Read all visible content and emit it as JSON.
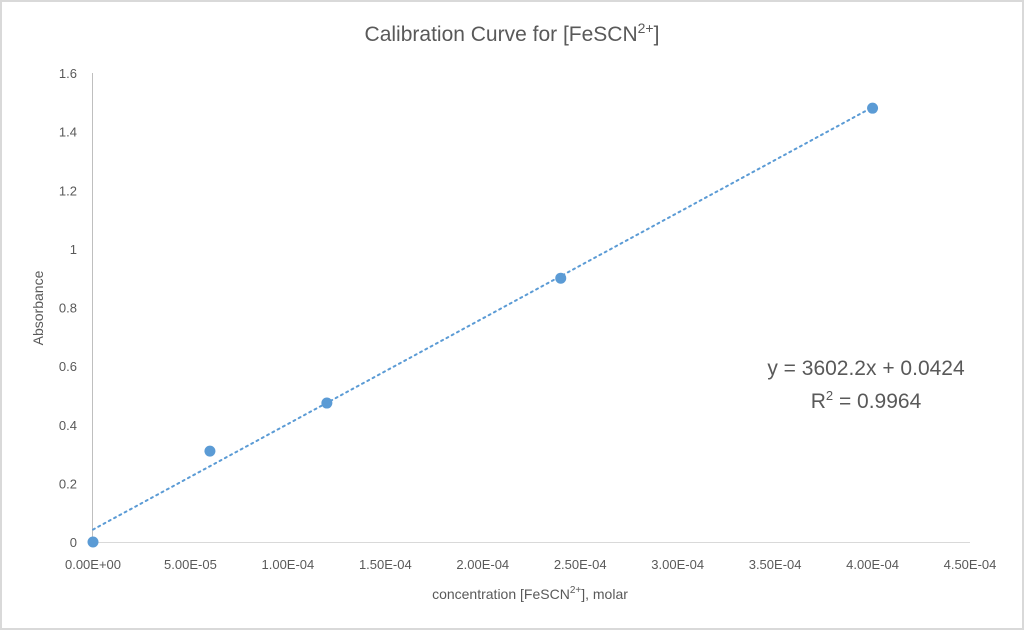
{
  "chart_data": {
    "type": "scatter",
    "title": "Calibration Curve for [FeSCN2+]",
    "title_parts": {
      "main": "Calibration Curve for [FeSCN",
      "sup": "2+",
      "end": "]"
    },
    "xlabel": "concentration [FeSCN2+], molar",
    "xlabel_parts": {
      "main": "concentration [FeSCN",
      "sup": "2+",
      "end": "], molar"
    },
    "ylabel": "Absorbance",
    "xlim": [
      0,
      0.00045
    ],
    "ylim": [
      0,
      1.6
    ],
    "x_ticks": [
      "0.00E+00",
      "5.00E-05",
      "1.00E-04",
      "1.50E-04",
      "2.00E-04",
      "2.50E-04",
      "3.00E-04",
      "3.50E-04",
      "4.00E-04",
      "4.50E-04"
    ],
    "y_ticks": [
      "0",
      "0.2",
      "0.4",
      "0.6",
      "0.8",
      "1",
      "1.2",
      "1.4",
      "1.6"
    ],
    "grid": false,
    "legend": null,
    "series": [
      {
        "name": "Absorbance",
        "color": "#5b9bd5",
        "x": [
          0,
          6e-05,
          0.00012,
          0.00024,
          0.0004
        ],
        "y": [
          0,
          0.31,
          0.474,
          0.9,
          1.48
        ]
      }
    ],
    "trendline": {
      "type": "linear",
      "style": "dotted",
      "color": "#5b9bd5",
      "slope": 3602.2,
      "intercept": 0.0424,
      "r_squared": 0.9964,
      "x_range": [
        0,
        0.0004
      ],
      "equation_label": "y = 3602.2x + 0.0424",
      "r2_label_main": "R",
      "r2_label_sup": "2",
      "r2_label_value": " = 0.9964"
    }
  }
}
